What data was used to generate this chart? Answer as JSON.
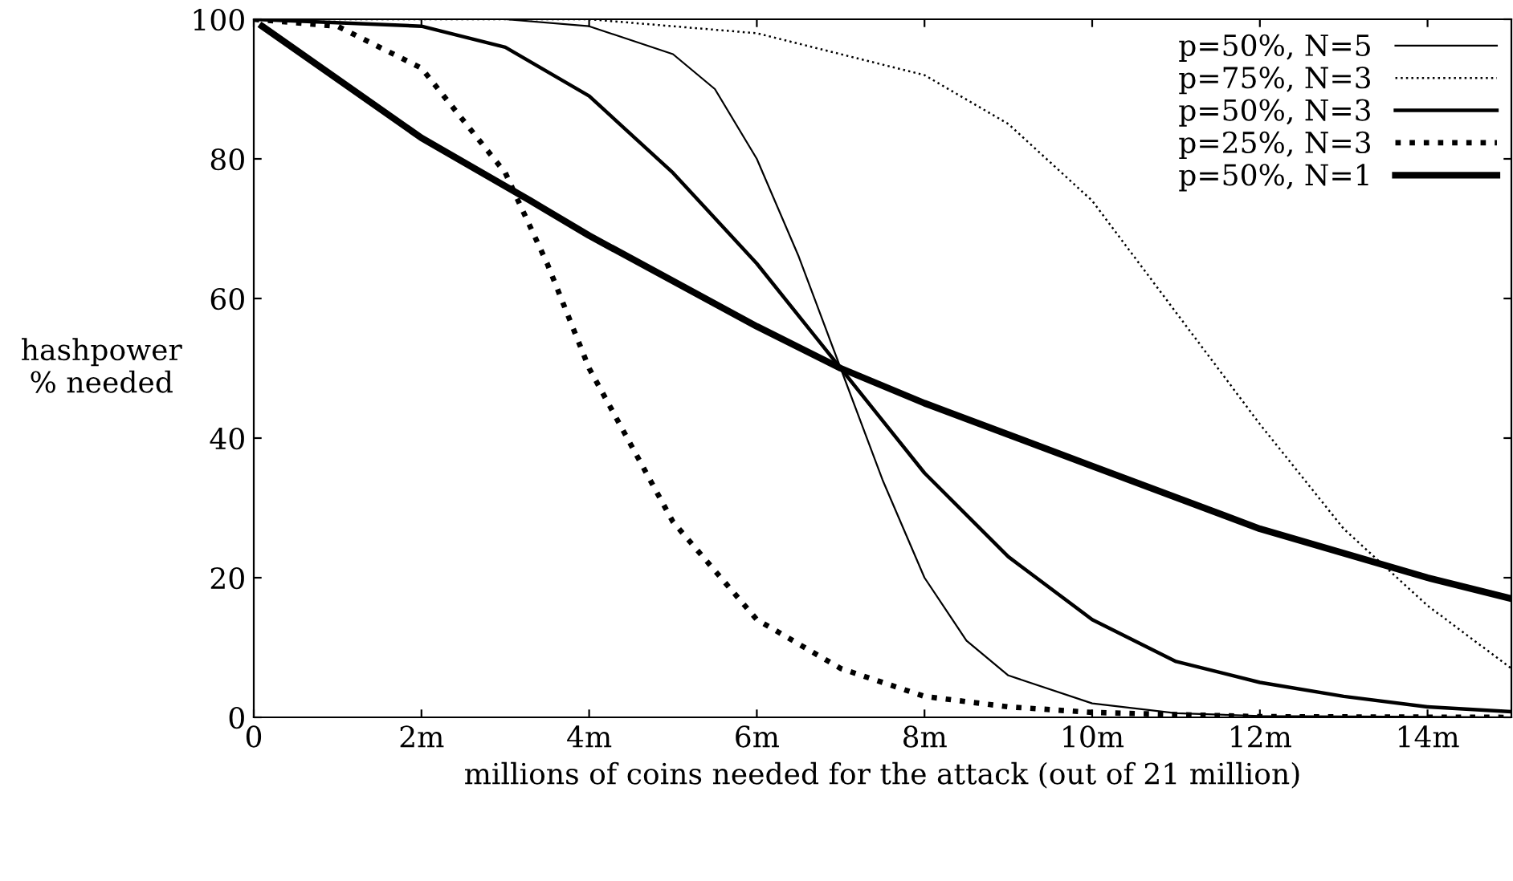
{
  "chart_data": {
    "type": "line",
    "xlabel": "millions of coins needed for the attack (out of 21 million)",
    "ylabel": "hashpower\n% needed",
    "xlim": [
      0,
      15
    ],
    "ylim": [
      0,
      100
    ],
    "xticks": [
      0,
      {
        "value": 2,
        "label": "2m"
      },
      {
        "value": 4,
        "label": "4m"
      },
      {
        "value": 6,
        "label": "6m"
      },
      {
        "value": 8,
        "label": "8m"
      },
      {
        "value": 10,
        "label": "10m"
      },
      {
        "value": 12,
        "label": "12m"
      },
      {
        "value": 14,
        "label": "14m"
      }
    ],
    "yticks": [
      0,
      20,
      40,
      60,
      80,
      100
    ],
    "grid": false,
    "legend": "top right",
    "marker": "none",
    "series": [
      {
        "name": "p=50%, N=5",
        "color": "#000000",
        "line_style": "solid",
        "x": [
          0,
          3,
          4,
          5,
          5.5,
          6,
          6.5,
          7,
          7.5,
          8,
          8.5,
          9,
          10,
          11,
          12,
          15
        ],
        "values": [
          100,
          100,
          99,
          95,
          90,
          80,
          66,
          50,
          34,
          20,
          11,
          6,
          2,
          0.6,
          0.2,
          0
        ]
      },
      {
        "name": "p=75%, N=3",
        "color": "#000000",
        "line_style": "dotted",
        "x": [
          0,
          4,
          6,
          8,
          9,
          10,
          11,
          12,
          13,
          14,
          15
        ],
        "values": [
          100,
          100,
          98,
          92,
          85,
          74,
          58,
          42,
          27,
          16,
          7
        ]
      },
      {
        "name": "p=50%, N=3",
        "color": "#000000",
        "line_style": "solid",
        "x": [
          0,
          2,
          3,
          4,
          5,
          6,
          7,
          8,
          9,
          10,
          11,
          12,
          13,
          14,
          15
        ],
        "values": [
          100,
          99,
          96,
          89,
          78,
          65,
          50,
          35,
          23,
          14,
          8,
          5,
          3,
          1.5,
          0.8
        ]
      },
      {
        "name": "p=25%, N=3",
        "color": "#000000",
        "line_style": "dotted",
        "x": [
          0,
          1,
          2,
          3,
          3.5,
          4,
          5,
          6,
          7,
          8,
          9,
          10,
          12,
          15
        ],
        "values": [
          100,
          99,
          93,
          78,
          65,
          50,
          28,
          14,
          7,
          3,
          1.5,
          0.7,
          0.1,
          0
        ]
      },
      {
        "name": "p=50%, N=1",
        "color": "#000000",
        "line_style": "solid",
        "x": [
          0.1,
          2,
          3.3,
          4,
          6,
          7,
          8,
          10,
          12,
          14,
          15
        ],
        "values": [
          99,
          83,
          74,
          69,
          56,
          50,
          45,
          36,
          27,
          20,
          17
        ]
      }
    ]
  }
}
